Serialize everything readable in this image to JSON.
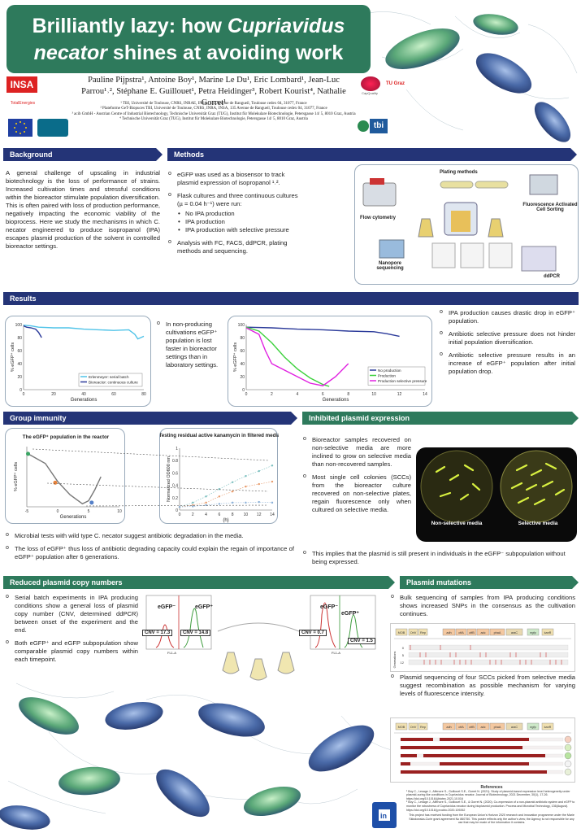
{
  "title": {
    "line1_a": "Brilliantly lazy: how ",
    "line1_b": "Cupriavidus",
    "line2_a": "necator",
    "line2_b": " shines at avoiding work"
  },
  "authors": {
    "line1": "Pauline Pijpstra¹, Antoine Boy¹, Marine Le Du¹, Eric Lombard¹, Jean-Luc Parrou¹˒², Stéphane E. Guillouet¹, Petra Heidinger³, Robert Kourist⁴, Nathalie Gorret¹",
    "affiliations": [
      "¹ TBI, Université de Toulouse, CNRS, INRAE, INSA, 135 Avenue de Rangueil, Toulouse cedex 04, 31077, France",
      "² Plateforme GeT-Biopuces TBI, Université de Toulouse, CNRS, INRA, INSA, 135 Avenue de Rangueil, Toulouse cedex 04, 31077, France",
      "³ acib GmbH - Austrian Centre of Industrial Biotechnology, Technische Universität Graz (TUG), Institut für Molekulare Biotechnologie, Petersgasse 14/ 5, 8010 Graz, Austria",
      "⁴ Technische Universität Graz (TUG), Institut für Molekulare Biotechnologie, Petersgasse 14/ 5, 8010 Graz, Austria"
    ]
  },
  "logos": {
    "insa": "INSA",
    "total": "TotalEnergies",
    "tu": "TU Graz",
    "tbi": "tbi",
    "cdq": "CapQuality"
  },
  "background": {
    "heading": "Background",
    "text": "A general challenge of upscaling in industrial biotechnology is the loss of performance of strains. Increased cultivation times and stressful conditions within the bioreactor stimulate population diversification. This is often paired with loss of production performance, negatively impacting the economic viability of the bioprocess. Here we study the mechanisms in which C. necator engineered to produce isopropanol (IPA) escapes plasmid production of the solvent in controlled bioreactor settings."
  },
  "methods": {
    "heading": "Methods",
    "b1": "eGFP was used as a biosensor to track plasmid expression of isopropanol ¹˒².",
    "b2": "Flask cultures and three continuous cultures (µ = 0.04 h⁻¹) were run:",
    "b2_sub": [
      "No IPA production",
      "IPA production",
      "IPA production with selective pressure"
    ],
    "b3": "Analysis with FC, FACS, ddPCR, plating methods and sequencing.",
    "fig_labels": {
      "plating": "Plating methods",
      "flow": "Flow cytometry",
      "facs": "Fluorescence Activated Cell Sorting",
      "nanopore": "Nanopore sequencing",
      "ddpcr": "ddPCR"
    }
  },
  "results": {
    "heading": "Results",
    "middle_text": "In non-producing cultivations eGFP⁺ population is lost faster in bioreactor settings than in laboratory settings.",
    "right": [
      "IPA production causes drastic drop in eGFP⁺ population.",
      "Antibiotic selective pressure does not hinder initial population diversification.",
      "Antibiotic selective pressure results in an increase of eGFP⁺ population after initial population drop."
    ]
  },
  "chart_data": [
    {
      "type": "line",
      "xlabel": "Generations",
      "ylabel": "% eGFP⁺ cells",
      "xlim": [
        0,
        80
      ],
      "ylim": [
        0,
        100
      ],
      "xticks": [
        0,
        20,
        40,
        60,
        80
      ],
      "yticks": [
        0,
        20,
        40,
        60,
        80,
        100
      ],
      "legend_position": "bottom-right",
      "series": [
        {
          "name": "Erlenmeyer: serial batch",
          "color": "#4fc3e8",
          "x": [
            0,
            5,
            10,
            20,
            30,
            40,
            50,
            60,
            70,
            74,
            76,
            80
          ],
          "y": [
            99,
            98,
            96,
            95,
            95,
            93,
            92,
            91,
            92,
            85,
            78,
            82
          ]
        },
        {
          "name": "Bioreactor: continuous culture",
          "color": "#2b3a9a",
          "x": [
            0,
            2,
            5,
            8,
            10,
            12
          ],
          "y": [
            98,
            96,
            95,
            93,
            88,
            80
          ]
        }
      ]
    },
    {
      "type": "line",
      "xlabel": "Generations",
      "ylabel": "% eGFP⁺ cells",
      "xlim": [
        0,
        14
      ],
      "ylim": [
        0,
        100
      ],
      "xticks": [
        0,
        2,
        4,
        6,
        8,
        10,
        12,
        14
      ],
      "yticks": [
        0,
        20,
        40,
        60,
        80,
        100
      ],
      "legend_position": "bottom-right",
      "series": [
        {
          "name": "No production",
          "color": "#2b3a9a",
          "x": [
            0,
            2,
            4,
            6,
            8,
            10,
            11,
            12
          ],
          "y": [
            96,
            95,
            93,
            92,
            90,
            89,
            86,
            82
          ]
        },
        {
          "name": "Production",
          "color": "#3dd13d",
          "x": [
            0,
            1,
            2,
            3,
            4,
            5,
            6,
            6.5
          ],
          "y": [
            96,
            90,
            72,
            50,
            32,
            18,
            8,
            5
          ]
        },
        {
          "name": "Production selective pressure",
          "color": "#e020e0",
          "x": [
            0,
            1,
            1.5,
            2,
            3,
            4,
            5,
            6,
            7,
            8
          ],
          "y": [
            95,
            85,
            60,
            40,
            30,
            20,
            10,
            6,
            20,
            40
          ]
        }
      ]
    },
    {
      "type": "line",
      "title": "The eGFP⁺ population in the reactor",
      "xlabel": "Generations",
      "ylabel": "% eGFP⁺ cells",
      "xlim": [
        -5,
        10
      ],
      "ylim": [
        0,
        100
      ],
      "xticks": [
        -5,
        0,
        5,
        10
      ],
      "series": [
        {
          "name": "",
          "color": "#777777",
          "x": [
            -4.8,
            -2,
            0,
            2,
            4,
            5,
            6,
            7
          ],
          "y": [
            88,
            72,
            42,
            20,
            5,
            10,
            28,
            50
          ]
        }
      ],
      "highlighted_points": [
        {
          "x": -4.8,
          "y": 88,
          "color": "#3aa564"
        },
        {
          "x": -0.4,
          "y": 40,
          "color": "#e8823a"
        },
        {
          "x": 5.5,
          "y": 7,
          "color": "#5580c8"
        }
      ]
    },
    {
      "type": "scatter",
      "title": "Testing residual active kanamycin in filtered media",
      "ylabel": "Normalized OD600 nm",
      "xlabel": "(h)",
      "xlim": [
        0,
        14
      ],
      "ylim": [
        0,
        1
      ],
      "xticks": [
        0,
        2,
        4,
        6,
        8,
        10,
        12,
        14
      ],
      "yticks": [
        0,
        0.2,
        0.4,
        0.6,
        0.8,
        1
      ],
      "series": [
        {
          "name": "",
          "color": "#7bbfbf",
          "x": [
            0,
            2,
            4,
            6,
            8,
            10,
            12,
            14
          ],
          "y": [
            0.05,
            0.12,
            0.22,
            0.34,
            0.45,
            0.55,
            0.63,
            0.72
          ]
        },
        {
          "name": "",
          "color": "#e89a6a",
          "x": [
            0,
            2,
            4,
            6,
            8,
            10,
            12,
            14
          ],
          "y": [
            0.05,
            0.08,
            0.12,
            0.22,
            0.3,
            0.38,
            0.42,
            0.46
          ]
        },
        {
          "name": "",
          "color": "#8ab0d8",
          "x": [
            0,
            2,
            4,
            6,
            8,
            10,
            12,
            14
          ],
          "y": [
            0.05,
            0.06,
            0.08,
            0.1,
            0.12,
            0.12,
            0.13,
            0.12
          ]
        }
      ]
    }
  ],
  "group_immunity": {
    "heading": "Group immunity",
    "b1": "Microbial tests with wild type C. necator suggest antibiotic degradation in the media.",
    "b2": "The loss of eGFP⁺ thus loss of antibiotic degrading capacity could explain the regain of importance of eGFP⁺ population after 6 generations."
  },
  "inhibited": {
    "heading": "Inhibited plasmid expression",
    "b1": "Bioreactor samples recovered on non-selective media are more inclined to grow on selective media than non-recovered samples.",
    "b2": "Most single cell colonies (SCCs) from the bioreactor culture recovered on non-selective plates, regain fluorescence only when cultured on selective media.",
    "b3": "This implies that the plasmid is still present in individuals in the eGFP⁻ subpopulation without being expressed.",
    "plate_labels": [
      "Non-selective media",
      "Selective media"
    ]
  },
  "copy_numbers": {
    "heading": "Reduced plasmid copy numbers",
    "b1": "Serial batch experiments in IPA producing conditions show a general loss of plasmid copy number (CNV, determined ddPCR) between onset of the experiment and the end.",
    "b2": "Both eGFP⁺ and eGFP subpopulation show comparable plasmid copy numbers within each timepoint.",
    "hist_labels": {
      "neg": "eGFP⁻",
      "pos": "eGFP⁺",
      "cnv1": "CNV = 17.3",
      "cnv2": "CNV = 14.8",
      "cnv3": "CNV = 0.7",
      "cnv4": "CNV = 1.5",
      "xaxis": "FL1-A"
    }
  },
  "mutations": {
    "heading": "Plasmid mutations",
    "b1": "Bulk sequencing of samples from IPA producing conditions shows increased SNPs in the consensus as the cultivation continues.",
    "b2": "Plasmid sequencing of four SCCs picked from selective media suggest recombination as possible mechanism for varying levels of fluorescence intensity.",
    "genes": [
      "MOB",
      "OriV",
      "Rep",
      "adh",
      "ctfA",
      "ctfB",
      "adc",
      "phaA",
      "araC",
      "egfp",
      "kanR"
    ],
    "generation_labels": [
      "0",
      "5",
      "12"
    ],
    "gen_axis": "Generations"
  },
  "references": {
    "heading": "References",
    "lines": [
      "¹ Boy C., Lesage J., Alfenore S., Guillouet S.E., Gorret N. (2021). Study of plasmid-based expression level heterogeneity under plasmid-curing like conditions in Cupriavidus necator. Journal of Biotechnology, 2021 December, 30(1), 17-26. https://doi.org/10.1016/j.jbiotec.2021.10.016",
      "² Boy C., Lesage J., Alfenore S., Guillouet S.E., & Gorret N. (2020). Co-expression of a non-plasmid antibiotic system and eGFP to monitor the robustness of Cupriavidus necator during bioplasmid production. Process and Microbial Technology, 136(August). https://doi.org/10.1016/j.procbio.2020.109262",
      "This project has received funding from the European Union's Horizon 2020 research and innovation programme under the Marie Skłodowska-Curie grant agreement No 860750. This poster reflects only the author's view; the Agency is not responsible for any use that may be made of the information it contains."
    ]
  },
  "colors": {
    "title_bg": "#2e7a5c",
    "section_blue": "#243477",
    "section_green": "#2e7a5c",
    "panel_border": "#9ab"
  }
}
